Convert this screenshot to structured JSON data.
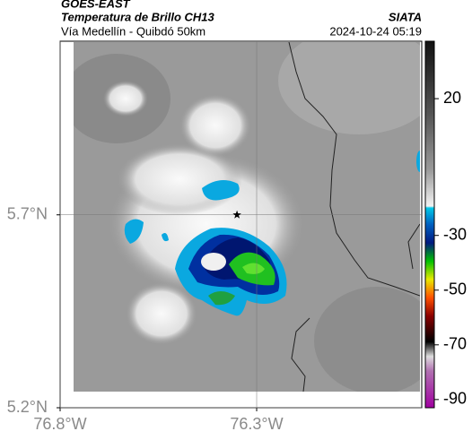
{
  "header": {
    "title": "GOES-EAST",
    "subtitle": "Temperatura de Brillo CH13",
    "route": "Vía Medellín - Quibdó 50km",
    "source": "SIATA",
    "timestamp": "2024-10-24 05:19"
  },
  "map": {
    "xlim": [
      -76.8,
      -75.88
    ],
    "ylim": [
      5.2,
      6.15
    ],
    "xticks": [
      {
        "value": -76.8,
        "label": "76.8°W"
      },
      {
        "value": -76.3,
        "label": "76.3°W"
      }
    ],
    "yticks": [
      {
        "value": 5.7,
        "label": "5.7°N"
      },
      {
        "value": 5.2,
        "label": "5.2°N"
      }
    ],
    "grid": true,
    "marker": {
      "lon": -76.35,
      "lat": 5.7
    }
  },
  "colorbar": {
    "clim": [
      -93,
      41
    ],
    "ticks": [
      20,
      -30,
      -50,
      -70,
      -90
    ]
  }
}
